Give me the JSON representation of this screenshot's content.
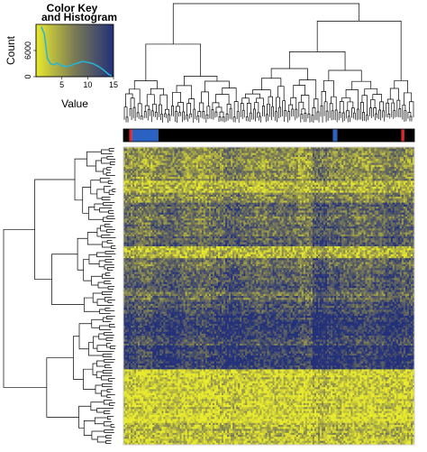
{
  "chart_data": {
    "type": "heatmap",
    "color_key": {
      "title_line1": "Color Key",
      "title_line2": "and Histogram",
      "xlabel": "Value",
      "ylabel": "Count",
      "x_ticks": [
        "5",
        "10",
        "15"
      ],
      "y_ticks": [
        "0",
        "6000"
      ],
      "x_range": [
        0,
        15
      ],
      "colors": {
        "low": "#e8ea2e",
        "mid": "#7a7a55",
        "high": "#23307a"
      },
      "histogram_color": "#27b3d6",
      "histogram": [
        [
          1.0,
          11500
        ],
        [
          1.6,
          9800
        ],
        [
          2.2,
          4200
        ],
        [
          2.8,
          3000
        ],
        [
          3.4,
          2700
        ],
        [
          4.0,
          3100
        ],
        [
          5.0,
          2500
        ],
        [
          6.0,
          2300
        ],
        [
          7.0,
          2700
        ],
        [
          8.0,
          3100
        ],
        [
          9.0,
          3500
        ],
        [
          10.0,
          3300
        ],
        [
          11.0,
          3000
        ],
        [
          12.0,
          2400
        ],
        [
          13.0,
          1600
        ],
        [
          14.0,
          600
        ],
        [
          14.6,
          150
        ]
      ],
      "y_max": 12000
    },
    "column_annotation": {
      "colors": {
        "group_a": "#000000",
        "group_b": "#2b62c2",
        "group_c": "#e0252b"
      },
      "segments": [
        {
          "start": 0.0,
          "end": 0.02,
          "group": "group_a"
        },
        {
          "start": 0.02,
          "end": 0.03,
          "group": "group_c"
        },
        {
          "start": 0.03,
          "end": 0.12,
          "group": "group_b"
        },
        {
          "start": 0.12,
          "end": 0.72,
          "group": "group_a"
        },
        {
          "start": 0.72,
          "end": 0.735,
          "group": "group_b"
        },
        {
          "start": 0.735,
          "end": 0.955,
          "group": "group_a"
        },
        {
          "start": 0.955,
          "end": 0.965,
          "group": "group_c"
        },
        {
          "start": 0.965,
          "end": 1.0,
          "group": "group_a"
        }
      ]
    },
    "heatmap": {
      "n_columns": 160,
      "n_rows": 150,
      "row_band_levels": [
        0.55,
        0.62,
        0.55,
        0.75,
        0.6,
        0.35,
        0.45,
        0.4,
        0.3,
        0.78,
        0.4,
        0.35,
        0.28,
        0.38,
        0.22,
        0.12,
        0.12,
        0.22,
        0.1,
        0.1,
        0.88,
        0.9,
        0.88,
        0.85,
        0.95,
        0.75,
        0.82
      ],
      "column_band_levels": [
        0.0,
        0.1,
        0.0,
        -0.05,
        0.05,
        0.08,
        0.0,
        -0.1,
        0.0,
        0.05,
        0.0,
        0.0,
        0.1,
        -0.15,
        -0.05,
        0.0,
        0.05,
        0.0,
        -0.1,
        0.0
      ]
    }
  }
}
